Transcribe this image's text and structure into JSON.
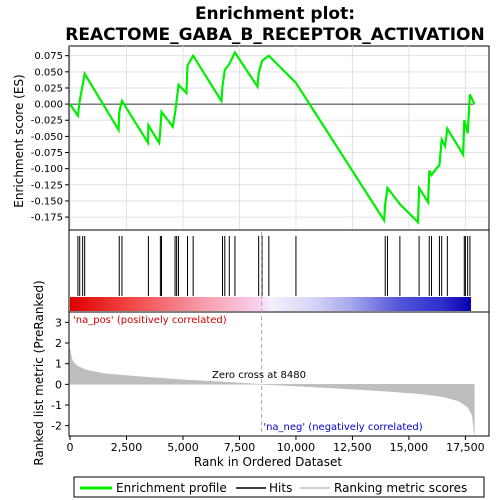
{
  "chart_data": {
    "type": "line",
    "title_line1": "Enrichment plot:",
    "title_line2": "REACTOME_GABA_B_RECEPTOR_ACTIVATION",
    "top_panel": {
      "ylabel": "Enrichment score (ES)",
      "ylim": [
        -0.195,
        0.09
      ],
      "yticks": [
        0.075,
        0.05,
        0.025,
        0.0,
        -0.025,
        -0.05,
        -0.075,
        -0.1,
        -0.125,
        -0.15,
        -0.175
      ],
      "ytick_labels": [
        "0.075",
        "0.050",
        "0.025",
        "0.000",
        "-0.025",
        "-0.050",
        "-0.075",
        "-0.100",
        "-0.125",
        "-0.150",
        "-0.175"
      ],
      "grid": true,
      "series": {
        "name": "Enrichment profile",
        "color": "#00ee00",
        "x": [
          0,
          350,
          430,
          560,
          650,
          2150,
          2180,
          2300,
          3450,
          3470,
          3950,
          4000,
          4050,
          4550,
          4650,
          4720,
          4800,
          5150,
          5200,
          5450,
          6700,
          6750,
          6850,
          7050,
          7300,
          8300,
          8350,
          8500,
          8800,
          10000,
          13900,
          13950,
          14050,
          14600,
          15400,
          15450,
          15850,
          15900,
          16000,
          16250,
          16350,
          16450,
          16600,
          16700,
          17400,
          17450,
          17600,
          17700,
          17900
        ],
        "y": [
          0.0,
          -0.018,
          0.005,
          0.03,
          0.047,
          -0.04,
          -0.012,
          0.005,
          -0.06,
          -0.033,
          -0.06,
          -0.038,
          -0.012,
          -0.035,
          -0.013,
          0.005,
          0.03,
          0.017,
          0.06,
          0.075,
          0.005,
          0.028,
          0.053,
          0.062,
          0.08,
          0.027,
          0.048,
          0.067,
          0.075,
          0.033,
          -0.18,
          -0.155,
          -0.13,
          -0.155,
          -0.183,
          -0.13,
          -0.152,
          -0.103,
          -0.11,
          -0.098,
          -0.095,
          -0.055,
          -0.065,
          -0.038,
          -0.078,
          -0.025,
          -0.045,
          0.015,
          0.0
        ]
      }
    },
    "hits": {
      "name": "Hits",
      "x": [
        350,
        430,
        560,
        650,
        2180,
        2300,
        3470,
        4000,
        4050,
        4650,
        4720,
        4800,
        5200,
        5450,
        6750,
        6850,
        7050,
        7300,
        8350,
        8500,
        8800,
        10000,
        13950,
        14050,
        14600,
        15450,
        15900,
        16000,
        16350,
        16450,
        16700,
        17450,
        17500,
        17600,
        17700
      ]
    },
    "bottom_panel": {
      "ylabel": "Ranked list metric (PreRanked)",
      "xlabel": "Rank in Ordered Dataset",
      "ylim": [
        -2.5,
        3.5
      ],
      "yticks": [
        3,
        2,
        1,
        0,
        -1,
        -2
      ],
      "ytick_labels": [
        "3",
        "2",
        "1",
        "0",
        "-1",
        "-2"
      ],
      "xlim": [
        0,
        18500
      ],
      "xticks": [
        0,
        2500,
        5000,
        7500,
        10000,
        12500,
        15000,
        17500
      ],
      "xtick_labels": [
        "0",
        "2,500",
        "5,000",
        "7,500",
        "10,000",
        "12,500",
        "15,000",
        "17,500"
      ],
      "series": {
        "name": "Ranking metric scores",
        "color": "#bebebe",
        "x": [
          0,
          100,
          300,
          700,
          1500,
          3000,
          5000,
          7000,
          8480,
          10000,
          12000,
          14000,
          15500,
          16500,
          17200,
          17600,
          17800,
          17900
        ],
        "y": [
          1.7,
          1.15,
          0.9,
          0.7,
          0.52,
          0.38,
          0.22,
          0.1,
          0.0,
          -0.08,
          -0.2,
          -0.33,
          -0.46,
          -0.6,
          -0.8,
          -1.1,
          -1.5,
          -2.4
        ]
      },
      "zero_cross_x": 8480,
      "zero_cross_label": "Zero cross at 8480",
      "pos_label": "'na_pos' (positively correlated)",
      "neg_label": "'na_neg' (negatively correlated)"
    },
    "n_ranks": 17900,
    "legend": {
      "placement": "bottom",
      "items": [
        {
          "label": "Enrichment profile",
          "color": "#00ee00"
        },
        {
          "label": "Hits",
          "color": "#000000"
        },
        {
          "label": "Ranking metric scores",
          "color": "#bebebe"
        }
      ]
    }
  }
}
